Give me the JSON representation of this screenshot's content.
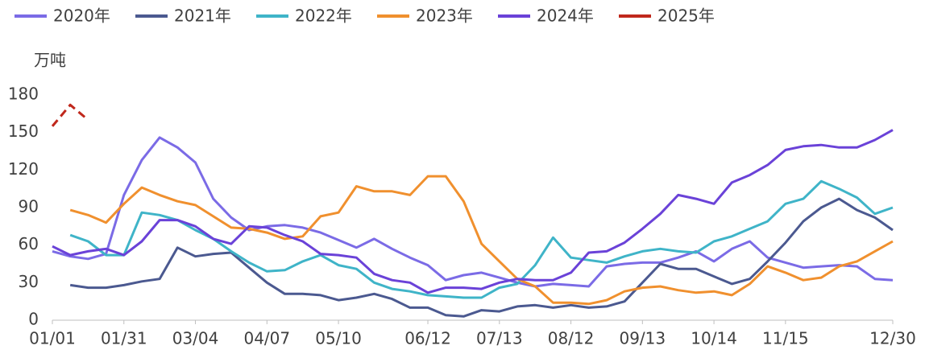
{
  "chart_data": {
    "type": "line",
    "y_label": "万吨",
    "categories": [
      "01/01",
      null,
      null,
      null,
      "01/31",
      null,
      null,
      null,
      "03/04",
      null,
      null,
      null,
      "04/07",
      null,
      null,
      null,
      "05/10",
      null,
      null,
      null,
      null,
      "06/12",
      null,
      null,
      null,
      "07/13",
      null,
      null,
      null,
      "08/12",
      null,
      null,
      null,
      "09/13",
      null,
      null,
      null,
      "10/14",
      null,
      null,
      null,
      "11/15",
      null,
      null,
      null,
      null,
      null,
      "12/30"
    ],
    "ylim": [
      0,
      180
    ],
    "yticks": [
      0,
      30,
      60,
      90,
      120,
      150,
      180
    ],
    "legend": "top",
    "series": [
      {
        "name": "2020年",
        "color": "#7b6be6",
        "values": [
          55,
          51,
          49,
          53,
          100,
          128,
          146,
          138,
          126,
          97,
          82,
          72,
          75,
          76,
          74,
          70,
          64,
          58,
          65,
          57,
          50,
          44,
          32,
          36,
          38,
          34,
          30,
          27,
          29,
          28,
          27,
          43,
          45,
          46,
          46,
          50,
          55,
          47,
          57,
          63,
          50,
          46,
          42,
          43,
          44,
          43,
          33,
          32
        ]
      },
      {
        "name": "2021年",
        "color": "#4b5990",
        "values": [
          null,
          28,
          26,
          26,
          28,
          31,
          33,
          58,
          51,
          53,
          54,
          42,
          30,
          21,
          21,
          20,
          16,
          18,
          21,
          17,
          10,
          10,
          4,
          3,
          8,
          7,
          11,
          12,
          10,
          12,
          10,
          11,
          15,
          30,
          45,
          41,
          41,
          35,
          29,
          33,
          47,
          62,
          79,
          90,
          97,
          88,
          82,
          72
        ]
      },
      {
        "name": "2022年",
        "color": "#3fb4c8",
        "values": [
          null,
          68,
          63,
          52,
          52,
          86,
          84,
          80,
          72,
          65,
          55,
          46,
          39,
          40,
          47,
          52,
          44,
          41,
          30,
          25,
          23,
          20,
          19,
          18,
          18,
          26,
          29,
          44,
          66,
          50,
          48,
          46,
          51,
          55,
          57,
          55,
          54,
          63,
          67,
          73,
          79,
          93,
          97,
          111,
          105,
          98,
          85,
          90
        ]
      },
      {
        "name": "2023年",
        "color": "#f0902e",
        "values": [
          null,
          88,
          84,
          78,
          93,
          106,
          100,
          95,
          92,
          83,
          74,
          73,
          70,
          65,
          67,
          83,
          86,
          107,
          103,
          103,
          100,
          115,
          115,
          95,
          61,
          47,
          33,
          27,
          14,
          14,
          13,
          16,
          23,
          26,
          27,
          24,
          22,
          23,
          20,
          29,
          43,
          38,
          32,
          34,
          43,
          47,
          55,
          63
        ]
      },
      {
        "name": "2024年",
        "color": "#6a42d8",
        "values": [
          59,
          52,
          55,
          57,
          52,
          63,
          80,
          80,
          75,
          65,
          61,
          75,
          74,
          68,
          63,
          53,
          52,
          50,
          37,
          32,
          30,
          22,
          26,
          26,
          25,
          30,
          33,
          32,
          32,
          38,
          54,
          55,
          62,
          73,
          85,
          100,
          97,
          93,
          110,
          116,
          124,
          136,
          139,
          140,
          138,
          138,
          144,
          152
        ]
      },
      {
        "name": "2025年",
        "color": "#c0281c",
        "dashed": true,
        "values": [
          155,
          172,
          160,
          null,
          null,
          null,
          null,
          null,
          null,
          null,
          null,
          null,
          null,
          null,
          null,
          null,
          null,
          null,
          null,
          null,
          null,
          null,
          null,
          null,
          null,
          null,
          null,
          null,
          null,
          null,
          null,
          null,
          null,
          null,
          null,
          null,
          null,
          null,
          null,
          null,
          null,
          null,
          null,
          null,
          null,
          null,
          null,
          null
        ]
      }
    ]
  }
}
